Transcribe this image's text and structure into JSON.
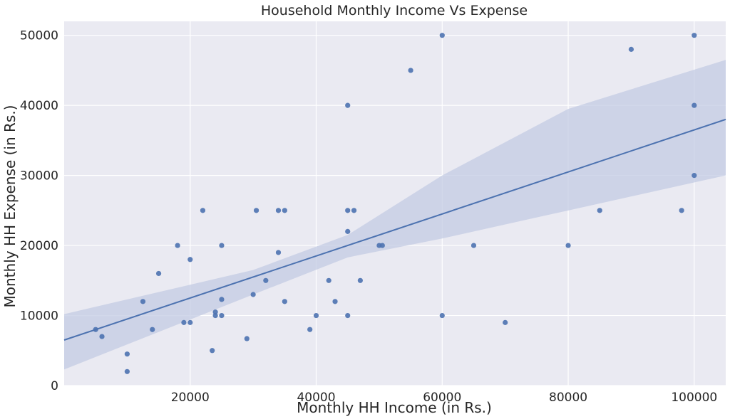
{
  "chart_data": {
    "type": "scatter",
    "title": "Household Monthly Income Vs Expense",
    "xlabel": "Monthly HH Income (in Rs.)",
    "ylabel": "Monthly HH Expense (in Rs.)",
    "xlim": [
      0,
      105000
    ],
    "ylim": [
      0,
      52000
    ],
    "xticks": [
      20000,
      40000,
      60000,
      80000,
      100000
    ],
    "yticks": [
      0,
      10000,
      20000,
      30000,
      40000,
      50000
    ],
    "grid": true,
    "colors": {
      "background": "#eaeaf2",
      "grid": "#ffffff",
      "points": "#4c72b0",
      "band": "#c3cbe3"
    },
    "points": [
      {
        "x": 5000,
        "y": 8000
      },
      {
        "x": 6000,
        "y": 7000
      },
      {
        "x": 10000,
        "y": 4500
      },
      {
        "x": 10000,
        "y": 2000
      },
      {
        "x": 12500,
        "y": 12000
      },
      {
        "x": 14000,
        "y": 8000
      },
      {
        "x": 15000,
        "y": 16000
      },
      {
        "x": 18000,
        "y": 20000
      },
      {
        "x": 19000,
        "y": 9000
      },
      {
        "x": 20000,
        "y": 9000
      },
      {
        "x": 20000,
        "y": 18000
      },
      {
        "x": 22000,
        "y": 25000
      },
      {
        "x": 23500,
        "y": 5000
      },
      {
        "x": 24000,
        "y": 10000
      },
      {
        "x": 24000,
        "y": 10500
      },
      {
        "x": 25000,
        "y": 10000
      },
      {
        "x": 25000,
        "y": 20000
      },
      {
        "x": 25000,
        "y": 12300
      },
      {
        "x": 29000,
        "y": 6700
      },
      {
        "x": 30000,
        "y": 13000
      },
      {
        "x": 30500,
        "y": 25000
      },
      {
        "x": 32000,
        "y": 15000
      },
      {
        "x": 34000,
        "y": 25000
      },
      {
        "x": 34000,
        "y": 19000
      },
      {
        "x": 35000,
        "y": 25000
      },
      {
        "x": 35000,
        "y": 12000
      },
      {
        "x": 39000,
        "y": 8000
      },
      {
        "x": 40000,
        "y": 10000
      },
      {
        "x": 42000,
        "y": 15000
      },
      {
        "x": 43000,
        "y": 12000
      },
      {
        "x": 45000,
        "y": 40000
      },
      {
        "x": 45000,
        "y": 25000
      },
      {
        "x": 45000,
        "y": 22000
      },
      {
        "x": 45000,
        "y": 10000
      },
      {
        "x": 46000,
        "y": 25000
      },
      {
        "x": 47000,
        "y": 15000
      },
      {
        "x": 50000,
        "y": 20000
      },
      {
        "x": 50500,
        "y": 20000
      },
      {
        "x": 55000,
        "y": 45000
      },
      {
        "x": 60000,
        "y": 50000
      },
      {
        "x": 60000,
        "y": 10000
      },
      {
        "x": 65000,
        "y": 20000
      },
      {
        "x": 70000,
        "y": 9000
      },
      {
        "x": 80000,
        "y": 20000
      },
      {
        "x": 85000,
        "y": 25000
      },
      {
        "x": 90000,
        "y": 48000
      },
      {
        "x": 98000,
        "y": 25000
      },
      {
        "x": 100000,
        "y": 50000
      },
      {
        "x": 100000,
        "y": 40000
      },
      {
        "x": 100000,
        "y": 30000
      }
    ],
    "regression": {
      "line": [
        [
          0,
          6500
        ],
        [
          105000,
          38000
        ]
      ],
      "ci_upper": [
        [
          0,
          10200
        ],
        [
          30000,
          16500
        ],
        [
          45000,
          21500
        ],
        [
          60000,
          30000
        ],
        [
          80000,
          39500
        ],
        [
          105000,
          46500
        ]
      ],
      "ci_lower": [
        [
          0,
          2300
        ],
        [
          30000,
          13000
        ],
        [
          45000,
          18300
        ],
        [
          60000,
          21000
        ],
        [
          80000,
          25000
        ],
        [
          105000,
          30000
        ]
      ]
    }
  }
}
